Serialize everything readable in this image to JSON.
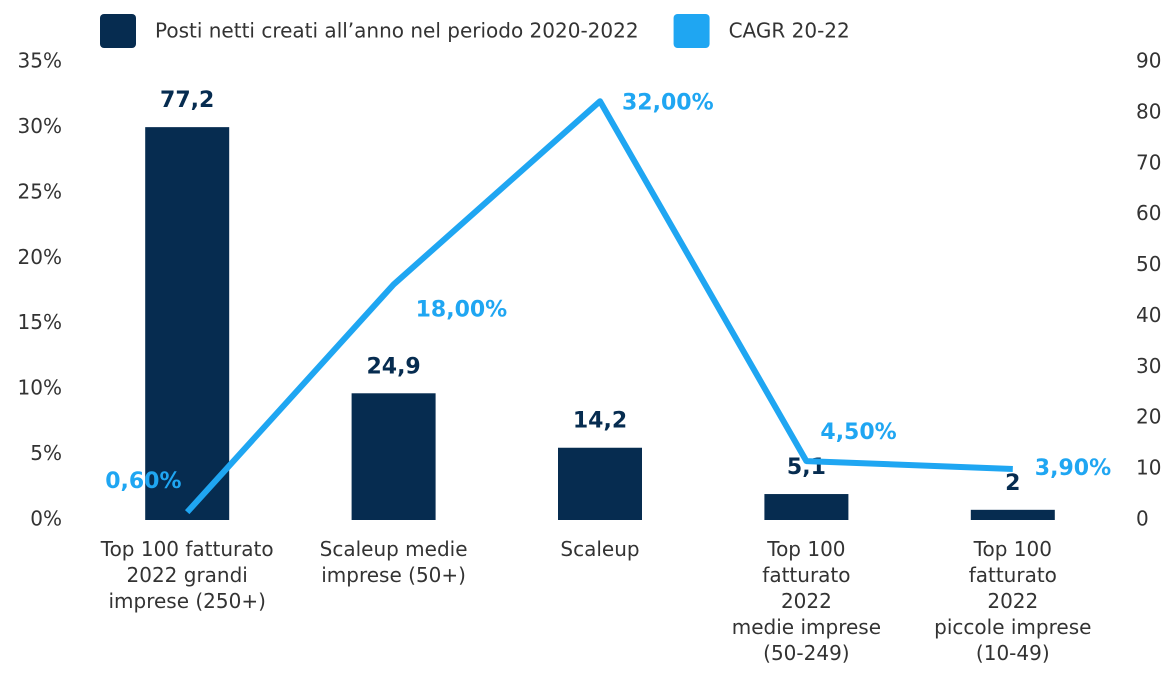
{
  "chart_data": {
    "type": "bar-line",
    "categories": [
      "Top 100 fatturato\n2022 grandi\nimprese (250+)",
      "Scaleup medie\nimprese (50+)",
      "Scaleup",
      "Top 100\nfatturato\n2022\nmedie imprese\n(50-249)",
      "Top 100\nfatturato\n2022\npiccole imprese\n(10-49)"
    ],
    "series": [
      {
        "name": "Posti netti creati all’anno nel periodo 2020-2022",
        "type": "bar",
        "axis": "y2",
        "color": "#062c50",
        "values": [
          77.2,
          24.9,
          14.2,
          5.1,
          2
        ],
        "value_labels": [
          "77,2",
          "24,9",
          "14,2",
          "5,1",
          "2"
        ]
      },
      {
        "name": "CAGR 20-22",
        "type": "line",
        "axis": "y",
        "color": "#1fa6f2",
        "values": [
          0.6,
          18,
          32,
          4.5,
          3.9
        ],
        "value_labels": [
          "0,60%",
          "18,00%",
          "32,00%",
          "4,50%",
          "3,90%"
        ]
      }
    ],
    "ylim": [
      0,
      35
    ],
    "yticks": [
      {
        "value": 0,
        "label": "0%"
      },
      {
        "value": 5,
        "label": "5%"
      },
      {
        "value": 10,
        "label": "10%"
      },
      {
        "value": 15,
        "label": "15%"
      },
      {
        "value": 20,
        "label": "20%"
      },
      {
        "value": 25,
        "label": "25%"
      },
      {
        "value": 30,
        "label": "30%"
      },
      {
        "value": 35,
        "label": "35%"
      }
    ],
    "y2lim": [
      0,
      90
    ],
    "y2ticks": [
      0,
      10,
      20,
      30,
      40,
      50,
      60,
      70,
      80,
      90
    ],
    "legend": "top"
  }
}
